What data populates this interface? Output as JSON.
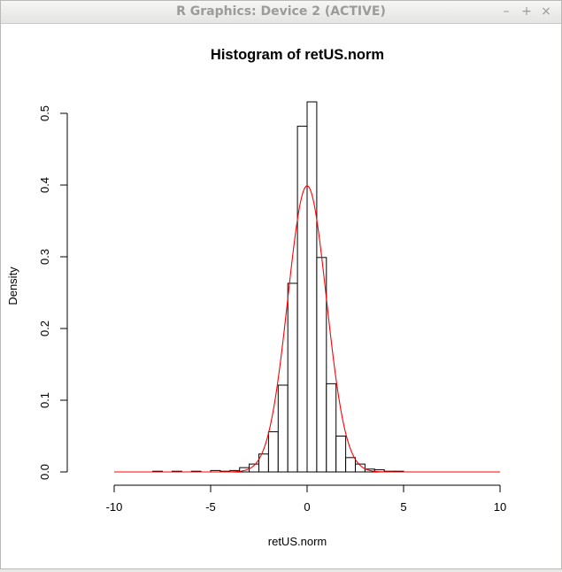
{
  "window": {
    "title": "R Graphics: Device 2 (ACTIVE)",
    "minimize_glyph": "–",
    "maximize_glyph": "+",
    "close_glyph": "×"
  },
  "chart_data": {
    "type": "bar",
    "title": "Histogram of retUS.norm",
    "xlabel": "retUS.norm",
    "ylabel": "Density",
    "xlim": [
      -11.5,
      10.5
    ],
    "ylim": [
      0,
      0.52
    ],
    "xticks": [
      -10,
      -5,
      0,
      5,
      10
    ],
    "yticks": [
      0.0,
      0.1,
      0.2,
      0.3,
      0.4,
      0.5
    ],
    "bin_width": 0.5,
    "bins": [
      {
        "x0": -11.5,
        "x1": -11.0,
        "density": 0.0
      },
      {
        "x0": -11.0,
        "x1": -10.5,
        "density": 0.0
      },
      {
        "x0": -10.5,
        "x1": -10.0,
        "density": 0.0
      },
      {
        "x0": -10.0,
        "x1": -9.5,
        "density": 0.0
      },
      {
        "x0": -9.5,
        "x1": -9.0,
        "density": 0.0
      },
      {
        "x0": -9.0,
        "x1": -8.5,
        "density": 0.0
      },
      {
        "x0": -8.5,
        "x1": -8.0,
        "density": 0.0
      },
      {
        "x0": -8.0,
        "x1": -7.5,
        "density": 0.001
      },
      {
        "x0": -7.5,
        "x1": -7.0,
        "density": 0.0
      },
      {
        "x0": -7.0,
        "x1": -6.5,
        "density": 0.001
      },
      {
        "x0": -6.5,
        "x1": -6.0,
        "density": 0.0
      },
      {
        "x0": -6.0,
        "x1": -5.5,
        "density": 0.001
      },
      {
        "x0": -5.5,
        "x1": -5.0,
        "density": 0.0
      },
      {
        "x0": -5.0,
        "x1": -4.5,
        "density": 0.002
      },
      {
        "x0": -4.5,
        "x1": -4.0,
        "density": 0.001
      },
      {
        "x0": -4.0,
        "x1": -3.5,
        "density": 0.002
      },
      {
        "x0": -3.5,
        "x1": -3.0,
        "density": 0.006
      },
      {
        "x0": -3.0,
        "x1": -2.5,
        "density": 0.011
      },
      {
        "x0": -2.5,
        "x1": -2.0,
        "density": 0.025
      },
      {
        "x0": -2.0,
        "x1": -1.5,
        "density": 0.056
      },
      {
        "x0": -1.5,
        "x1": -1.0,
        "density": 0.121
      },
      {
        "x0": -1.0,
        "x1": -0.5,
        "density": 0.263
      },
      {
        "x0": -0.5,
        "x1": 0.0,
        "density": 0.482
      },
      {
        "x0": 0.0,
        "x1": 0.5,
        "density": 0.516
      },
      {
        "x0": 0.5,
        "x1": 1.0,
        "density": 0.299
      },
      {
        "x0": 1.0,
        "x1": 1.5,
        "density": 0.123
      },
      {
        "x0": 1.5,
        "x1": 2.0,
        "density": 0.05
      },
      {
        "x0": 2.0,
        "x1": 2.5,
        "density": 0.02
      },
      {
        "x0": 2.5,
        "x1": 3.0,
        "density": 0.011
      },
      {
        "x0": 3.0,
        "x1": 3.5,
        "density": 0.004
      },
      {
        "x0": 3.5,
        "x1": 4.0,
        "density": 0.003
      },
      {
        "x0": 4.0,
        "x1": 4.5,
        "density": 0.001
      },
      {
        "x0": 4.5,
        "x1": 5.0,
        "density": 0.001
      },
      {
        "x0": 5.0,
        "x1": 5.5,
        "density": 0.0
      },
      {
        "x0": 5.5,
        "x1": 6.0,
        "density": 0.0
      },
      {
        "x0": 6.0,
        "x1": 6.5,
        "density": 0.0
      },
      {
        "x0": 6.5,
        "x1": 7.0,
        "density": 0.0
      },
      {
        "x0": 7.0,
        "x1": 7.5,
        "density": 0.0
      },
      {
        "x0": 7.5,
        "x1": 8.0,
        "density": 0.0
      },
      {
        "x0": 8.0,
        "x1": 8.5,
        "density": 0.0
      },
      {
        "x0": 8.5,
        "x1": 9.0,
        "density": 0.0
      },
      {
        "x0": 9.0,
        "x1": 9.5,
        "density": 0.0
      },
      {
        "x0": 9.5,
        "x1": 10.0,
        "density": 0.0
      },
      {
        "x0": 10.0,
        "x1": 10.5,
        "density": 0.0
      }
    ],
    "overlay_curve": {
      "type": "normal_density",
      "mean": 0,
      "sd": 1,
      "x_range": [
        -10,
        10
      ],
      "color": "#ff0000"
    },
    "bar_fill": "#ffffff",
    "bar_stroke": "#000000",
    "grid": false,
    "legend": "none"
  }
}
